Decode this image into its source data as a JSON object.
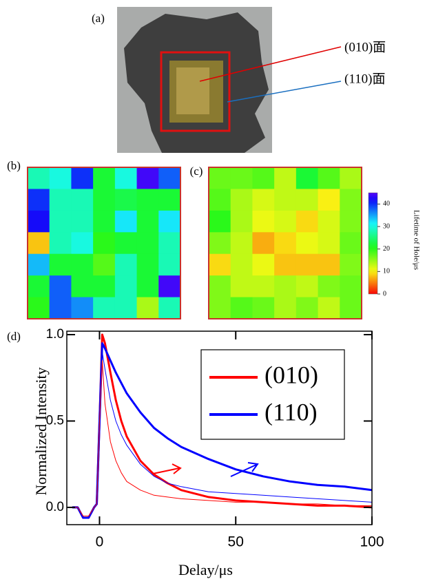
{
  "photo": {
    "label": "(a)",
    "annotations": [
      "(010)面",
      "(110)面"
    ]
  },
  "chart_data": [
    {
      "type": "heatmap",
      "label": "(b)",
      "zlim": [
        0,
        45
      ],
      "values": [
        [
          28,
          30,
          40,
          22,
          30,
          44,
          38
        ],
        [
          40,
          28,
          28,
          22,
          23,
          22,
          22
        ],
        [
          42,
          28,
          28,
          22,
          32,
          22,
          32
        ],
        [
          8,
          28,
          30,
          20,
          22,
          22,
          28
        ],
        [
          34,
          22,
          22,
          18,
          28,
          22,
          28
        ],
        [
          22,
          38,
          22,
          22,
          28,
          22,
          44
        ],
        [
          20,
          38,
          36,
          28,
          28,
          14,
          28
        ]
      ]
    },
    {
      "type": "heatmap",
      "label": "(c)",
      "zlim": [
        0,
        45
      ],
      "zticks": [
        0,
        10,
        20,
        30,
        40
      ],
      "zlabel": "Lifetime of Hole/μs",
      "values": [
        [
          17,
          17,
          18,
          13,
          22,
          18,
          14
        ],
        [
          18,
          14,
          12,
          13,
          13,
          10,
          16
        ],
        [
          20,
          14,
          11,
          12,
          9,
          12,
          16
        ],
        [
          16,
          13,
          7,
          9,
          11,
          12,
          17
        ],
        [
          9,
          13,
          11,
          8,
          8,
          8,
          16
        ],
        [
          16,
          13,
          13,
          14,
          13,
          16,
          17
        ],
        [
          16,
          18,
          17,
          14,
          16,
          13,
          17
        ]
      ]
    },
    {
      "type": "line",
      "label": "(d)",
      "xlabel": "Delay/μs",
      "ylabel": "Normalized Intensity",
      "xlim": [
        -12,
        100
      ],
      "xticks": [
        0,
        50,
        100
      ],
      "ylim": [
        -0.1,
        1.02
      ],
      "yticks": [
        {
          "value": 0,
          "label": "0.0"
        },
        {
          "value": 0.5,
          "label": "0.5"
        },
        {
          "value": 1,
          "label": "1.0"
        }
      ],
      "x": [
        -10,
        -8,
        -6,
        -4,
        -2,
        -1,
        0,
        1,
        2,
        4,
        6,
        8,
        10,
        15,
        20,
        25,
        30,
        40,
        50,
        60,
        70,
        80,
        90,
        100
      ],
      "series": [
        {
          "name": "(010)",
          "color": "#ff0000",
          "width": 3,
          "values": [
            0,
            0,
            -0.06,
            -0.06,
            0,
            0.02,
            0.5,
            1.0,
            0.95,
            0.78,
            0.62,
            0.5,
            0.41,
            0.27,
            0.19,
            0.14,
            0.1,
            0.06,
            0.04,
            0.03,
            0.02,
            0.01,
            0.01,
            0
          ]
        },
        {
          "name": "(110)",
          "color": "#0000ff",
          "width": 3,
          "values": [
            0,
            0,
            -0.06,
            -0.06,
            0,
            0.02,
            0.5,
            0.95,
            0.92,
            0.85,
            0.78,
            0.72,
            0.66,
            0.55,
            0.46,
            0.4,
            0.35,
            0.28,
            0.22,
            0.18,
            0.15,
            0.13,
            0.12,
            0.1
          ]
        },
        {
          "color": "#0000ff",
          "width": 1,
          "values": [
            0,
            0,
            -0.05,
            -0.05,
            0,
            0.02,
            0.5,
            0.9,
            0.8,
            0.62,
            0.5,
            0.42,
            0.36,
            0.25,
            0.18,
            0.14,
            0.12,
            0.09,
            0.08,
            0.07,
            0.06,
            0.05,
            0.04,
            0.03
          ]
        },
        {
          "color": "#ff0000",
          "width": 1,
          "values": [
            0,
            0,
            -0.05,
            -0.05,
            0,
            0.02,
            0.5,
            0.85,
            0.6,
            0.38,
            0.27,
            0.2,
            0.15,
            0.1,
            0.07,
            0.06,
            0.05,
            0.04,
            0.03,
            0.03,
            0.02,
            0.02,
            0.01,
            0.01
          ]
        }
      ]
    }
  ]
}
